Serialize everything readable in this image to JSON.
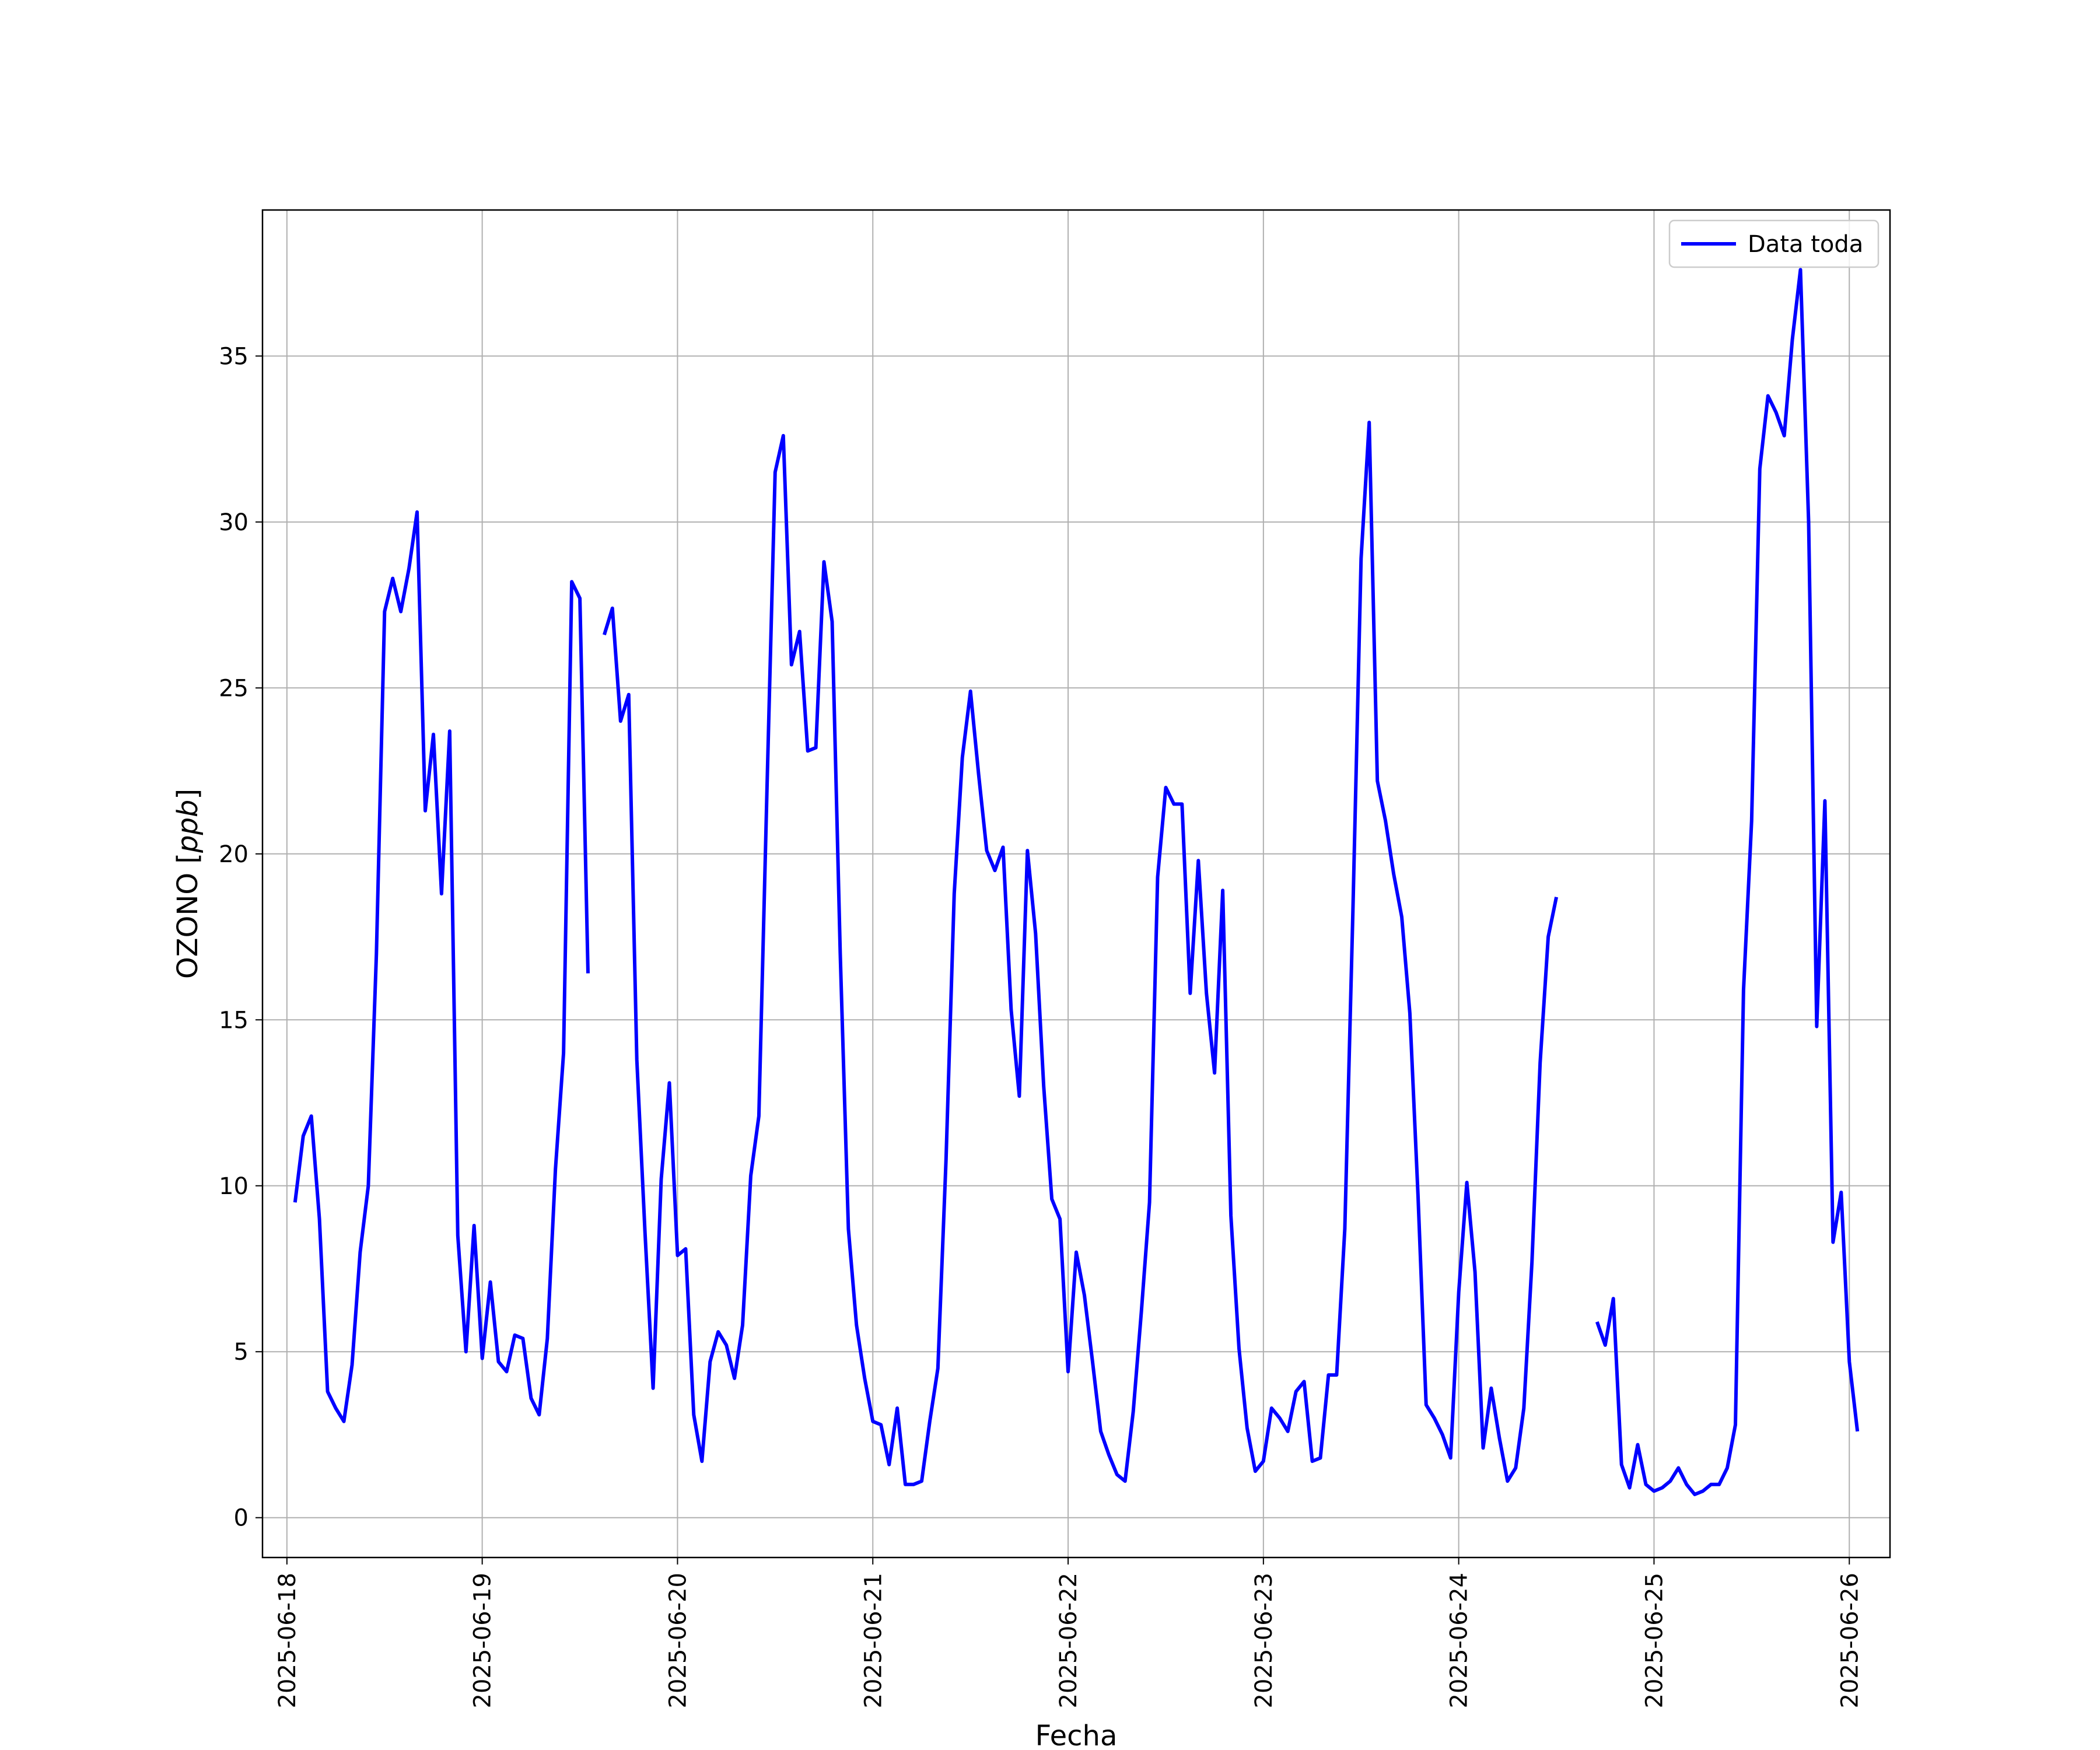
{
  "chart_data": {
    "type": "line",
    "title": "",
    "xlabel": "Fecha",
    "ylabel_text": "OZONO [",
    "ylabel_unit": "ppb",
    "ylabel_close": "]",
    "x_start": "2025-06-18 01:00",
    "x_step": "hourly",
    "xlim": [
      "2025-06-17 21:00",
      "2025-06-26 05:00"
    ],
    "ylim": [
      -1.2,
      39.4
    ],
    "x_ticks": [
      "2025-06-18",
      "2025-06-19",
      "2025-06-20",
      "2025-06-21",
      "2025-06-22",
      "2025-06-23",
      "2025-06-24",
      "2025-06-25",
      "2025-06-26"
    ],
    "y_ticks": [
      0,
      5,
      10,
      15,
      20,
      25,
      30,
      35
    ],
    "grid": true,
    "legend_position": "top-right",
    "colors": {
      "series": "#0000ff",
      "grid": "#b0b0b0",
      "axes": "#000000",
      "background": "#ffffff"
    },
    "series": [
      {
        "name": "Data toda",
        "values": [
          9.5,
          11.5,
          12.1,
          9.0,
          3.8,
          3.3,
          2.9,
          4.6,
          8.0,
          10.0,
          17.0,
          27.3,
          28.3,
          27.3,
          28.6,
          30.3,
          21.3,
          23.6,
          18.8,
          23.7,
          8.5,
          5.0,
          8.8,
          4.8,
          7.1,
          4.7,
          4.4,
          5.5,
          5.4,
          3.6,
          3.1,
          5.4,
          10.5,
          14.0,
          28.2,
          27.7,
          16.4,
          null,
          26.6,
          27.4,
          24.0,
          24.8,
          13.8,
          8.6,
          3.9,
          10.2,
          13.1,
          7.9,
          8.1,
          3.1,
          1.7,
          4.7,
          5.6,
          5.2,
          4.2,
          5.8,
          10.3,
          12.1,
          22.0,
          31.5,
          32.6,
          25.7,
          26.7,
          23.1,
          23.2,
          28.8,
          27.0,
          17.0,
          8.7,
          5.8,
          4.2,
          2.9,
          2.8,
          1.6,
          3.3,
          1.0,
          1.0,
          1.1,
          2.9,
          4.5,
          10.8,
          18.8,
          22.9,
          24.9,
          22.4,
          20.1,
          19.5,
          20.2,
          15.3,
          12.7,
          20.1,
          17.6,
          13.0,
          9.6,
          9.0,
          4.4,
          8.0,
          6.7,
          4.7,
          2.6,
          1.9,
          1.3,
          1.1,
          3.2,
          6.2,
          9.5,
          19.3,
          22.0,
          21.5,
          21.5,
          15.8,
          19.8,
          15.8,
          13.4,
          18.9,
          9.1,
          5.1,
          2.7,
          1.4,
          1.7,
          3.3,
          3.0,
          2.6,
          3.8,
          4.1,
          1.7,
          1.8,
          4.3,
          4.3,
          8.7,
          18.3,
          28.9,
          33.0,
          22.2,
          21.0,
          19.4,
          18.1,
          15.2,
          9.7,
          3.4,
          3.0,
          2.5,
          1.8,
          6.8,
          10.1,
          7.4,
          2.1,
          3.9,
          2.4,
          1.1,
          1.5,
          3.3,
          7.7,
          13.7,
          17.5,
          18.7,
          null,
          null,
          null,
          null,
          5.9,
          5.2,
          6.6,
          1.6,
          0.9,
          2.2,
          1.0,
          0.8,
          0.9,
          1.1,
          1.5,
          1.0,
          0.7,
          0.8,
          1.0,
          1.0,
          1.5,
          2.8,
          15.9,
          21.0,
          31.6,
          33.8,
          33.3,
          32.6,
          35.5,
          37.6,
          30.0,
          14.8,
          21.6,
          8.3,
          9.8,
          4.7,
          2.6
        ]
      }
    ]
  }
}
